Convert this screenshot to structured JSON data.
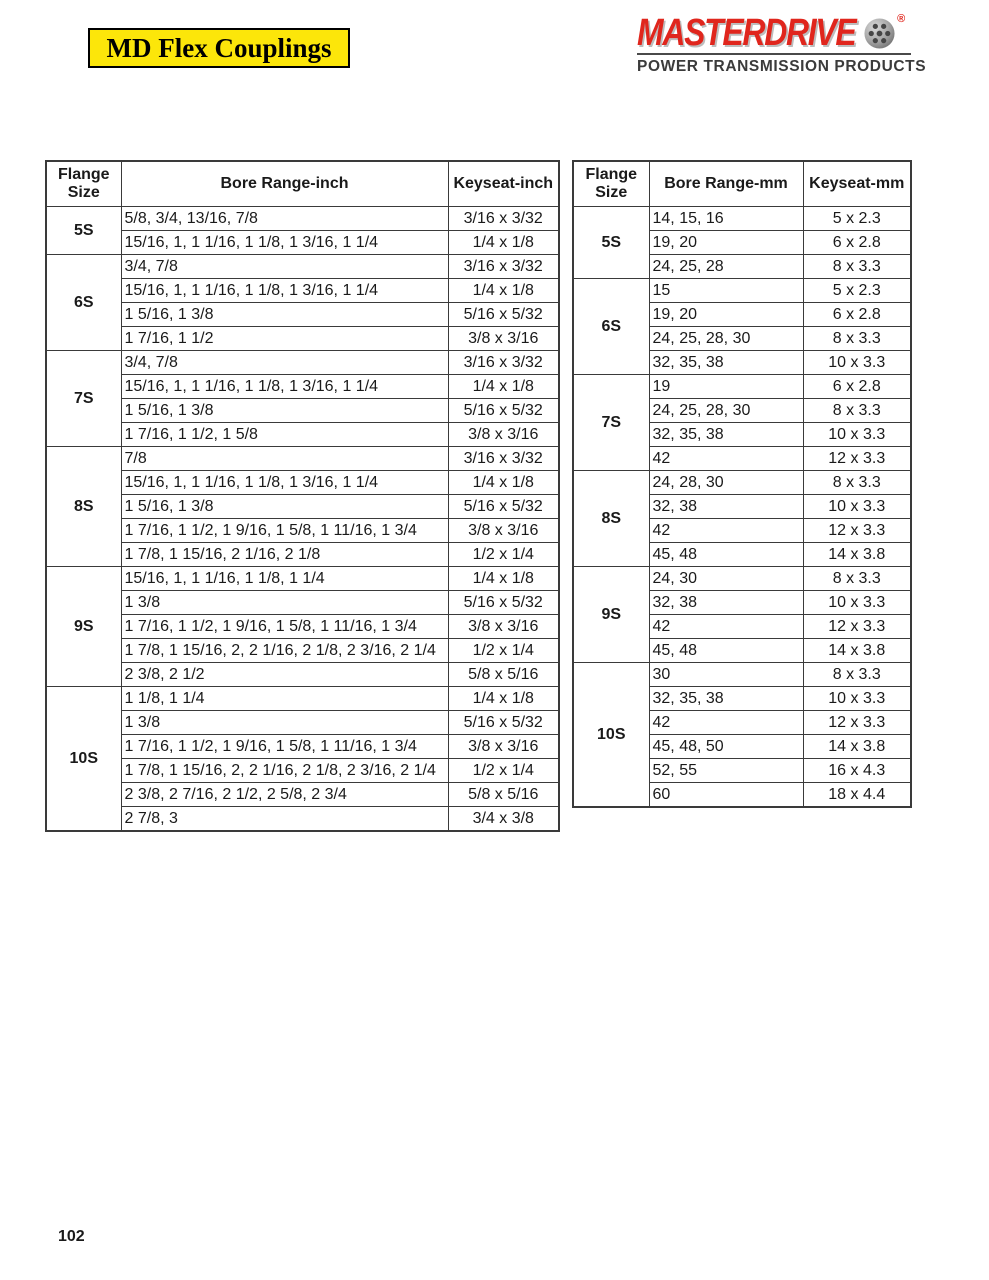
{
  "page": {
    "title": "MD Flex Couplings",
    "page_number": "102"
  },
  "logo": {
    "brand": "MASTERDRIVE",
    "registered_mark": "®",
    "tagline": "POWER TRANSMISSION PRODUCTS"
  },
  "colors": {
    "title_background": "#FCE60A",
    "brand_red": "#E0261D",
    "tagline_gray": "#3B3B3B",
    "table_border": "#3A3A3A"
  },
  "icons": {
    "coupling_disc": "coupling-disc-icon"
  },
  "tables": [
    {
      "id": "inch",
      "headers": [
        "Flange Size",
        "Bore Range-inch",
        "Keyseat-inch"
      ],
      "groups": [
        {
          "flange": "5S",
          "rows": [
            {
              "bore": "5/8, 3/4, 13/16, 7/8",
              "keyseat": "3/16 x 3/32"
            },
            {
              "bore": "15/16, 1, 1 1/16, 1 1/8, 1 3/16, 1 1/4",
              "keyseat": "1/4 x 1/8"
            }
          ]
        },
        {
          "flange": "6S",
          "rows": [
            {
              "bore": "3/4, 7/8",
              "keyseat": "3/16 x 3/32"
            },
            {
              "bore": "15/16, 1, 1 1/16, 1 1/8, 1 3/16, 1 1/4",
              "keyseat": "1/4 x 1/8"
            },
            {
              "bore": "1 5/16, 1 3/8",
              "keyseat": "5/16 x 5/32"
            },
            {
              "bore": "1 7/16, 1 1/2",
              "keyseat": "3/8 x 3/16"
            }
          ]
        },
        {
          "flange": "7S",
          "rows": [
            {
              "bore": "3/4, 7/8",
              "keyseat": "3/16 x 3/32"
            },
            {
              "bore": "15/16, 1, 1 1/16, 1 1/8, 1 3/16, 1 1/4",
              "keyseat": "1/4 x 1/8"
            },
            {
              "bore": "1 5/16, 1 3/8",
              "keyseat": "5/16 x 5/32"
            },
            {
              "bore": "1 7/16, 1 1/2, 1 5/8",
              "keyseat": "3/8 x 3/16"
            }
          ]
        },
        {
          "flange": "8S",
          "rows": [
            {
              "bore": "7/8",
              "keyseat": "3/16 x 3/32"
            },
            {
              "bore": "15/16, 1, 1 1/16, 1 1/8, 1 3/16, 1 1/4",
              "keyseat": "1/4 x 1/8"
            },
            {
              "bore": "1 5/16, 1 3/8",
              "keyseat": "5/16 x 5/32"
            },
            {
              "bore": "1 7/16, 1 1/2, 1 9/16, 1 5/8, 1 11/16, 1 3/4",
              "keyseat": "3/8 x 3/16"
            },
            {
              "bore": "1 7/8, 1 15/16, 2 1/16, 2 1/8",
              "keyseat": "1/2 x 1/4"
            }
          ]
        },
        {
          "flange": "9S",
          "rows": [
            {
              "bore": "15/16, 1, 1 1/16, 1 1/8, 1 1/4",
              "keyseat": "1/4 x 1/8"
            },
            {
              "bore": "1 3/8",
              "keyseat": "5/16 x 5/32"
            },
            {
              "bore": "1 7/16, 1 1/2, 1 9/16, 1 5/8, 1 11/16, 1 3/4",
              "keyseat": "3/8 x 3/16"
            },
            {
              "bore": "1 7/8, 1 15/16, 2, 2 1/16, 2 1/8, 2 3/16, 2 1/4",
              "keyseat": "1/2 x 1/4"
            },
            {
              "bore": "2 3/8, 2 1/2",
              "keyseat": "5/8 x 5/16"
            }
          ]
        },
        {
          "flange": "10S",
          "rows": [
            {
              "bore": "1 1/8, 1 1/4",
              "keyseat": "1/4 x 1/8"
            },
            {
              "bore": "1 3/8",
              "keyseat": "5/16 x 5/32"
            },
            {
              "bore": "1 7/16, 1 1/2, 1 9/16, 1 5/8, 1 11/16, 1 3/4",
              "keyseat": "3/8 x 3/16"
            },
            {
              "bore": "1 7/8, 1 15/16, 2, 2 1/16, 2 1/8, 2 3/16, 2 1/4",
              "keyseat": "1/2 x 1/4"
            },
            {
              "bore": "2 3/8, 2 7/16, 2 1/2, 2 5/8, 2 3/4",
              "keyseat": "5/8 x 5/16"
            },
            {
              "bore": "2 7/8, 3",
              "keyseat": "3/4 x 3/8"
            }
          ]
        }
      ]
    },
    {
      "id": "mm",
      "headers": [
        "Flange Size",
        "Bore Range-mm",
        "Keyseat-mm"
      ],
      "groups": [
        {
          "flange": "5S",
          "rows": [
            {
              "bore": "14, 15, 16",
              "keyseat": "5 x 2.3"
            },
            {
              "bore": "19, 20",
              "keyseat": "6 x 2.8"
            },
            {
              "bore": "24, 25, 28",
              "keyseat": "8 x 3.3"
            }
          ]
        },
        {
          "flange": "6S",
          "rows": [
            {
              "bore": "15",
              "keyseat": "5 x 2.3"
            },
            {
              "bore": "19, 20",
              "keyseat": "6 x 2.8"
            },
            {
              "bore": "24, 25, 28, 30",
              "keyseat": "8 x 3.3"
            },
            {
              "bore": "32, 35, 38",
              "keyseat": "10 x 3.3"
            }
          ]
        },
        {
          "flange": "7S",
          "rows": [
            {
              "bore": "19",
              "keyseat": "6 x 2.8"
            },
            {
              "bore": "24, 25, 28, 30",
              "keyseat": "8 x 3.3"
            },
            {
              "bore": "32, 35, 38",
              "keyseat": "10 x 3.3"
            },
            {
              "bore": "42",
              "keyseat": "12 x 3.3"
            }
          ]
        },
        {
          "flange": "8S",
          "rows": [
            {
              "bore": "24, 28, 30",
              "keyseat": "8 x 3.3"
            },
            {
              "bore": "32, 38",
              "keyseat": "10 x 3.3"
            },
            {
              "bore": "42",
              "keyseat": "12 x 3.3"
            },
            {
              "bore": "45, 48",
              "keyseat": "14 x 3.8"
            }
          ]
        },
        {
          "flange": "9S",
          "rows": [
            {
              "bore": "24, 30",
              "keyseat": "8 x 3.3"
            },
            {
              "bore": "32, 38",
              "keyseat": "10 x 3.3"
            },
            {
              "bore": "42",
              "keyseat": "12 x 3.3"
            },
            {
              "bore": "45, 48",
              "keyseat": "14 x 3.8"
            }
          ]
        },
        {
          "flange": "10S",
          "rows": [
            {
              "bore": "30",
              "keyseat": "8 x 3.3"
            },
            {
              "bore": "32, 35, 38",
              "keyseat": "10 x 3.3"
            },
            {
              "bore": "42",
              "keyseat": "12 x 3.3"
            },
            {
              "bore": "45, 48, 50",
              "keyseat": "14 x 3.8"
            },
            {
              "bore": "52, 55",
              "keyseat": "16 x 4.3"
            },
            {
              "bore": "60",
              "keyseat": "18 x 4.4"
            }
          ]
        }
      ]
    }
  ]
}
